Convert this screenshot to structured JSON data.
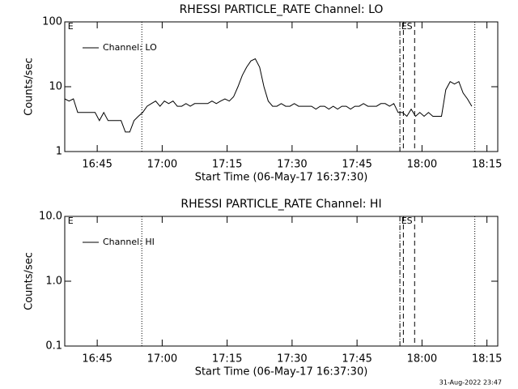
{
  "chart_data": [
    {
      "type": "line",
      "title": "RHESSI PARTICLE_RATE Channel: LO",
      "xlabel": "Start Time (06-May-17 16:37:30)",
      "ylabel": "Counts/sec",
      "log_y": true,
      "ylim": [
        1,
        100
      ],
      "yticks": [
        1,
        10,
        100
      ],
      "xlim": [
        997.5,
        1097.5
      ],
      "xticks": [
        {
          "value": 1005,
          "label": "16:45"
        },
        {
          "value": 1020,
          "label": "17:00"
        },
        {
          "value": 1035,
          "label": "17:15"
        },
        {
          "value": 1050,
          "label": "17:30"
        },
        {
          "value": 1065,
          "label": "17:45"
        },
        {
          "value": 1080,
          "label": "18:00"
        },
        {
          "value": 1095,
          "label": "18:15"
        }
      ],
      "legend": "upper left",
      "vlines": [
        {
          "x": 1015.3,
          "style": "dotted"
        },
        {
          "x": 1074.9,
          "style": "dashdot"
        },
        {
          "x": 1075.7,
          "style": "dashed"
        },
        {
          "x": 1078.3,
          "style": "dashed"
        },
        {
          "x": 1092.2,
          "style": "dotted"
        }
      ],
      "annotations": [
        {
          "x": 998.2,
          "text": "E"
        },
        {
          "x": 1075.2,
          "text": "ES"
        }
      ],
      "x": [
        997.5,
        998.5,
        999.5,
        1000.5,
        1001.5,
        1002.5,
        1003.5,
        1004.5,
        1005.5,
        1006.5,
        1007.5,
        1008.5,
        1009.5,
        1010.5,
        1011.5,
        1012.5,
        1013.5,
        1014.5,
        1015.5,
        1016.5,
        1017.5,
        1018.5,
        1019.5,
        1020.5,
        1021.5,
        1022.5,
        1023.5,
        1024.5,
        1025.5,
        1026.5,
        1027.5,
        1028.5,
        1029.5,
        1030.5,
        1031.5,
        1032.5,
        1033.5,
        1034.5,
        1035.5,
        1036.5,
        1037.5,
        1038.5,
        1039.5,
        1040.5,
        1041.5,
        1042.5,
        1043.5,
        1044.5,
        1045.5,
        1046.5,
        1047.5,
        1048.5,
        1049.5,
        1050.5,
        1051.5,
        1052.5,
        1053.5,
        1054.5,
        1055.5,
        1056.5,
        1057.5,
        1058.5,
        1059.5,
        1060.5,
        1061.5,
        1062.5,
        1063.5,
        1064.5,
        1065.5,
        1066.5,
        1067.5,
        1068.5,
        1069.5,
        1070.5,
        1071.5,
        1072.5,
        1073.5,
        1074.5,
        1075.5,
        1076.5,
        1077.5,
        1078.5,
        1079.5,
        1080.5,
        1081.5,
        1082.5,
        1083.5,
        1084.5,
        1085.5,
        1086.5,
        1087.5,
        1088.5,
        1089.5,
        1090.5,
        1091.5
      ],
      "series": [
        {
          "name": "Channel: LO",
          "color": "#000000",
          "values": [
            6.5,
            6,
            6.5,
            4,
            4,
            4,
            4,
            4,
            3,
            4,
            3,
            3,
            3,
            3,
            2,
            2,
            3,
            3.5,
            4,
            5,
            5.5,
            6,
            5,
            6,
            5.5,
            6,
            5,
            5,
            5.5,
            5,
            5.5,
            5.5,
            5.5,
            5.5,
            6,
            5.5,
            6,
            6.5,
            6,
            7,
            10,
            15,
            20,
            25,
            27,
            20,
            10,
            6,
            5,
            5,
            5.5,
            5,
            5,
            5.5,
            5,
            5,
            5,
            5,
            4.5,
            5,
            5,
            4.5,
            5,
            4.5,
            5,
            5,
            4.5,
            5,
            5,
            5.5,
            5,
            5,
            5,
            5.5,
            5.5,
            5,
            5.5,
            4,
            4,
            3.5,
            4.5,
            3.5,
            4,
            3.5,
            4,
            3.5,
            3.5,
            3.5,
            9,
            12,
            11,
            12,
            8,
            6.5,
            5
          ]
        }
      ]
    },
    {
      "type": "line",
      "title": "RHESSI PARTICLE_RATE Channel: HI",
      "xlabel": "Start Time (06-May-17 16:37:30)",
      "ylabel": "Counts/sec",
      "log_y": true,
      "ylim": [
        0.1,
        10
      ],
      "yticks": [
        {
          "value": 0.1,
          "label": "0.1"
        },
        {
          "value": 1,
          "label": "1.0"
        },
        {
          "value": 10,
          "label": "10.0"
        }
      ],
      "xlim": [
        997.5,
        1097.5
      ],
      "xticks": [
        {
          "value": 1005,
          "label": "16:45"
        },
        {
          "value": 1020,
          "label": "17:00"
        },
        {
          "value": 1035,
          "label": "17:15"
        },
        {
          "value": 1050,
          "label": "17:30"
        },
        {
          "value": 1065,
          "label": "17:45"
        },
        {
          "value": 1080,
          "label": "18:00"
        },
        {
          "value": 1095,
          "label": "18:15"
        }
      ],
      "legend": "upper left",
      "vlines": [
        {
          "x": 1015.3,
          "style": "dotted"
        },
        {
          "x": 1074.9,
          "style": "dashdot"
        },
        {
          "x": 1075.7,
          "style": "dashed"
        },
        {
          "x": 1078.3,
          "style": "dashed"
        },
        {
          "x": 1092.2,
          "style": "dotted"
        }
      ],
      "annotations": [
        {
          "x": 998.2,
          "text": "E"
        },
        {
          "x": 1075.2,
          "text": "ES"
        }
      ],
      "x": [],
      "series": [
        {
          "name": "Channel: HI",
          "color": "#000000",
          "values": []
        }
      ]
    }
  ],
  "footer": "31-Aug-2022 23:47"
}
